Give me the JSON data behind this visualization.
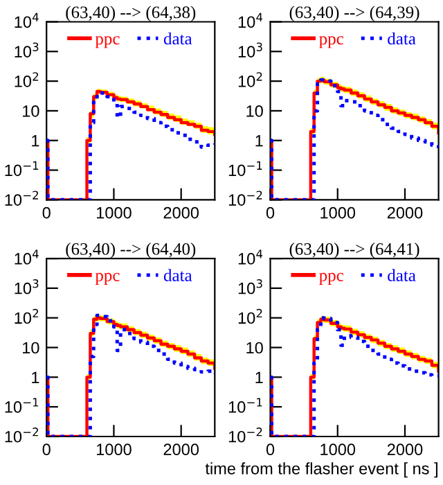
{
  "chart_data": [
    {
      "type": "step",
      "title": "(63,40) --> (64,38)",
      "legend": "top",
      "log": "y",
      "xlim": [
        0,
        2500
      ],
      "xticks": [
        0,
        1000,
        2000
      ],
      "ylim": [
        0.01,
        10000
      ],
      "yticks": [
        {
          "value": 0.01,
          "label": "10$^{−2}$"
        },
        {
          "value": 0.1,
          "label": "10$^{−1}$"
        },
        1,
        10,
        {
          "value": 100,
          "label": "10$^{2}$"
        },
        {
          "value": 1000,
          "label": "10$^{3}$"
        },
        {
          "value": 10000,
          "label": "10$^{4}$"
        }
      ],
      "x": [
        0,
        20,
        560,
        600,
        650,
        700,
        750,
        800,
        900,
        1000,
        1050,
        1100,
        1200,
        1300,
        1400,
        1500,
        1600,
        1700,
        1800,
        1900,
        2000,
        2100,
        2200,
        2300,
        2400,
        2500
      ],
      "series": [
        {
          "name": "ppc",
          "color": "#ff0000",
          "line_style": "solid",
          "values": [
            1,
            0.01,
            0.01,
            1,
            8,
            30,
            45,
            42,
            35,
            28,
            25,
            24,
            20,
            17,
            14,
            11,
            9,
            7.5,
            6,
            5,
            4,
            3.5,
            3,
            2.2,
            2,
            1.6
          ],
          "upper": [
            null,
            null,
            null,
            1.3,
            10,
            38,
            55,
            52,
            44,
            35,
            32,
            30,
            26,
            22,
            18,
            15,
            12,
            10,
            8,
            7,
            5.5,
            4.8,
            4,
            3,
            2.8,
            2.2
          ],
          "lower": [
            null,
            null,
            null,
            0.8,
            6,
            24,
            38,
            36,
            30,
            24,
            21,
            20,
            17,
            14,
            12,
            9.5,
            7.5,
            6.2,
            5,
            4.2,
            3.4,
            3,
            2.5,
            1.8,
            1.6,
            1.3
          ]
        },
        {
          "name": "data",
          "color": "#0000ff",
          "line_style": "dotted",
          "values": [
            1,
            0.01,
            0.01,
            0.01,
            4,
            22,
            40,
            40,
            30,
            20,
            6,
            14,
            12,
            9,
            7,
            5.5,
            4,
            3,
            2.3,
            1.8,
            1.5,
            1.1,
            0.9,
            0.6,
            0.7,
            0.8
          ]
        }
      ]
    },
    {
      "type": "step",
      "title": "(63,40) --> (64,39)",
      "legend": "top",
      "log": "y",
      "xlim": [
        0,
        2500
      ],
      "xticks": [
        0,
        1000,
        2000
      ],
      "ylim": [
        0.01,
        10000
      ],
      "yticks": [
        {
          "value": 0.01,
          "label": "10$^{−2}$"
        },
        {
          "value": 0.1,
          "label": "10$^{−1}$"
        },
        1,
        10,
        {
          "value": 100,
          "label": "10$^{2}$"
        },
        {
          "value": 1000,
          "label": "10$^{3}$"
        },
        {
          "value": 10000,
          "label": "10$^{4}$"
        }
      ],
      "x": [
        0,
        20,
        560,
        600,
        650,
        700,
        750,
        800,
        900,
        1000,
        1050,
        1100,
        1200,
        1300,
        1400,
        1500,
        1600,
        1700,
        1800,
        1900,
        2000,
        2100,
        2200,
        2300,
        2400,
        2500
      ],
      "series": [
        {
          "name": "ppc",
          "color": "#ff0000",
          "line_style": "solid",
          "values": [
            1,
            0.01,
            0.01,
            2,
            40,
            100,
            110,
            95,
            75,
            60,
            55,
            50,
            40,
            32,
            25,
            20,
            16,
            13,
            10,
            8.5,
            7,
            6,
            5,
            4,
            3,
            1.8
          ],
          "upper": [
            null,
            null,
            null,
            2.6,
            52,
            130,
            140,
            120,
            95,
            78,
            70,
            65,
            52,
            42,
            33,
            26,
            21,
            17,
            13,
            11,
            9,
            8,
            6.5,
            5.2,
            4,
            2.4
          ],
          "lower": [
            null,
            null,
            null,
            1.6,
            32,
            80,
            88,
            76,
            60,
            48,
            44,
            40,
            32,
            26,
            20,
            16,
            13,
            10,
            8,
            6.8,
            5.6,
            4.8,
            4,
            3.2,
            2.4,
            1.4
          ]
        },
        {
          "name": "data",
          "color": "#0000ff",
          "line_style": "dotted",
          "values": [
            1,
            0.01,
            0.01,
            0.01,
            10,
            80,
            110,
            100,
            70,
            45,
            15,
            22,
            20,
            15,
            10,
            7,
            5,
            3.5,
            2.6,
            2,
            1.6,
            1.2,
            1,
            0.9,
            0.7,
            0.5
          ]
        }
      ]
    },
    {
      "type": "step",
      "title": "(63,40) --> (64,40)",
      "legend": "top",
      "log": "y",
      "xlim": [
        0,
        2500
      ],
      "xticks": [
        0,
        1000,
        2000
      ],
      "ylim": [
        0.01,
        10000
      ],
      "yticks": [
        {
          "value": 0.01,
          "label": "10$^{−2}$"
        },
        {
          "value": 0.1,
          "label": "10$^{−1}$"
        },
        1,
        10,
        {
          "value": 100,
          "label": "10$^{2}$"
        },
        {
          "value": 1000,
          "label": "10$^{3}$"
        },
        {
          "value": 10000,
          "label": "10$^{4}$"
        }
      ],
      "x": [
        0,
        20,
        560,
        600,
        650,
        700,
        750,
        800,
        900,
        1000,
        1050,
        1100,
        1200,
        1300,
        1400,
        1500,
        1600,
        1700,
        1800,
        1900,
        2000,
        2100,
        2200,
        2300,
        2400,
        2500
      ],
      "series": [
        {
          "name": "ppc",
          "color": "#ff0000",
          "line_style": "solid",
          "values": [
            1,
            0.01,
            0.01,
            1,
            30,
            90,
            100,
            95,
            75,
            60,
            55,
            50,
            40,
            32,
            26,
            21,
            17,
            13,
            11,
            9,
            7.5,
            6,
            4.5,
            3.5,
            3,
            2
          ],
          "upper": [
            null,
            null,
            null,
            1.3,
            40,
            115,
            130,
            120,
            95,
            78,
            70,
            65,
            52,
            42,
            34,
            27,
            22,
            17,
            14,
            12,
            10,
            8,
            6,
            4.6,
            4,
            2.6
          ],
          "lower": [
            null,
            null,
            null,
            0.8,
            24,
            72,
            80,
            76,
            60,
            48,
            44,
            40,
            32,
            26,
            21,
            17,
            13.5,
            10.5,
            8.8,
            7.2,
            6,
            4.8,
            3.6,
            2.8,
            2.4,
            1.6
          ]
        },
        {
          "name": "data",
          "color": "#0000ff",
          "line_style": "dotted",
          "values": [
            1,
            0.01,
            0.01,
            0.01,
            5,
            60,
            120,
            110,
            80,
            50,
            8,
            40,
            30,
            20,
            15,
            11,
            8,
            6,
            4,
            3,
            2.3,
            2,
            1.8,
            1.5,
            1.6,
            1.3
          ]
        }
      ]
    },
    {
      "type": "step",
      "title": "(63,40) --> (64,41)",
      "legend": "top",
      "log": "y",
      "xlabel": "time from the flasher event [ ns ]",
      "xlim": [
        0,
        2500
      ],
      "xticks": [
        0,
        1000,
        2000
      ],
      "ylim": [
        0.01,
        10000
      ],
      "yticks": [
        {
          "value": 0.01,
          "label": "10$^{−2}$"
        },
        {
          "value": 0.1,
          "label": "10$^{−1}$"
        },
        1,
        10,
        {
          "value": 100,
          "label": "10$^{2}$"
        },
        {
          "value": 1000,
          "label": "10$^{3}$"
        },
        {
          "value": 10000,
          "label": "10$^{4}$"
        }
      ],
      "x": [
        0,
        20,
        560,
        600,
        650,
        700,
        750,
        800,
        900,
        1000,
        1050,
        1100,
        1200,
        1300,
        1400,
        1500,
        1600,
        1700,
        1800,
        1900,
        2000,
        2100,
        2200,
        2300,
        2400,
        2500
      ],
      "series": [
        {
          "name": "ppc",
          "color": "#ff0000",
          "line_style": "solid",
          "values": [
            1,
            0.01,
            0.01,
            1,
            20,
            70,
            90,
            85,
            65,
            50,
            45,
            42,
            33,
            27,
            22,
            18,
            14,
            11,
            9,
            7.5,
            6,
            5,
            4,
            3.5,
            2.5,
            1.6
          ],
          "upper": [
            null,
            null,
            null,
            1.3,
            26,
            90,
            115,
            110,
            85,
            65,
            58,
            55,
            43,
            35,
            28,
            23,
            18,
            14,
            12,
            10,
            8,
            6.5,
            5.2,
            4.5,
            3.3,
            2.1
          ],
          "lower": [
            null,
            null,
            null,
            0.8,
            16,
            56,
            72,
            68,
            52,
            40,
            36,
            34,
            26,
            22,
            18,
            14,
            11,
            8.8,
            7.2,
            6,
            4.8,
            4,
            3.2,
            2.8,
            2,
            1.3
          ]
        },
        {
          "name": "data",
          "color": "#0000ff",
          "line_style": "dotted",
          "values": [
            1,
            0.01,
            0.01,
            0.01,
            3,
            40,
            100,
            95,
            70,
            40,
            12,
            25,
            22,
            16,
            11,
            8,
            6,
            4,
            3,
            2.4,
            1.9,
            1.6,
            1.4,
            1.2,
            1.1,
            1.1
          ]
        }
      ]
    }
  ]
}
